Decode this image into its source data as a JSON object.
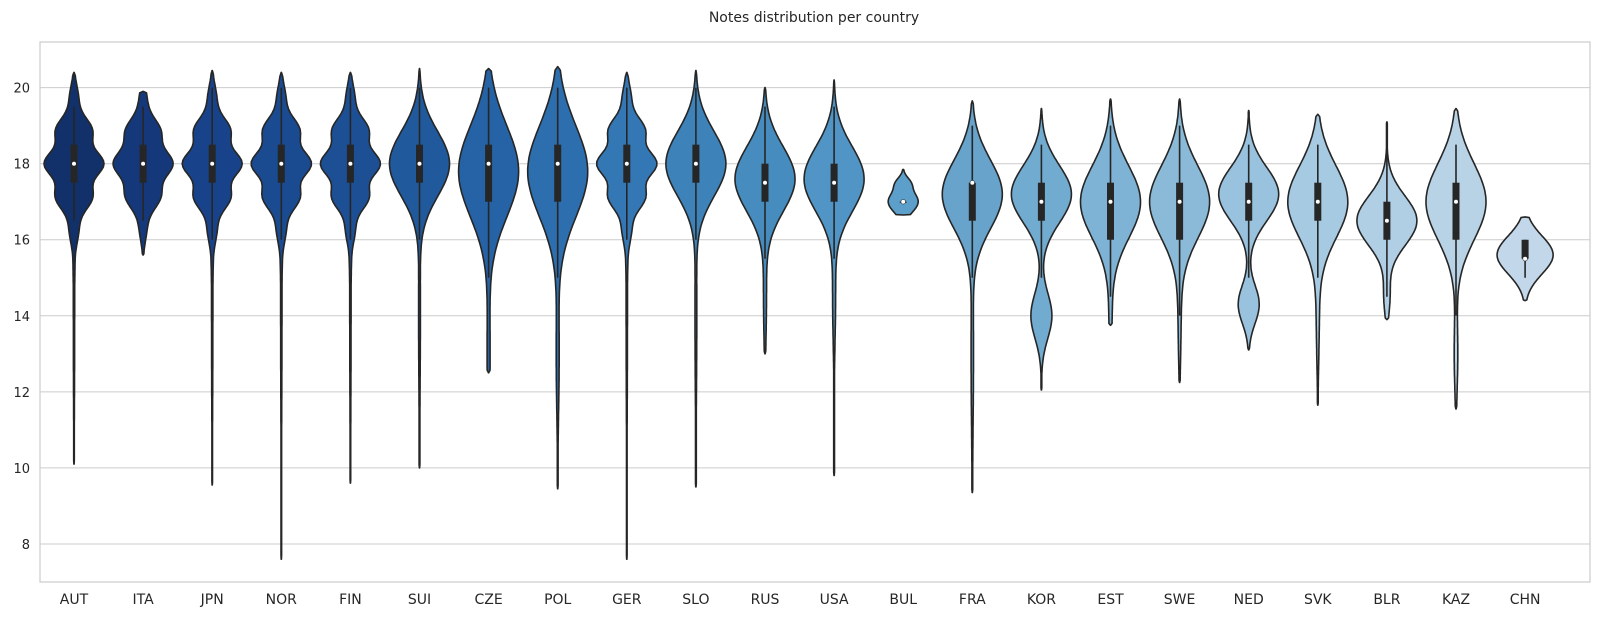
{
  "chart_data": {
    "type": "violin",
    "title": "Notes distribution per country",
    "xlabel": "",
    "ylabel": "",
    "ylim": [
      7,
      21.2
    ],
    "yticks": [
      8,
      10,
      12,
      14,
      16,
      18,
      20
    ],
    "grid": true,
    "categories": [
      "AUT",
      "ITA",
      "JPN",
      "NOR",
      "FIN",
      "SUI",
      "CZE",
      "POL",
      "GER",
      "SLO",
      "RUS",
      "USA",
      "BUL",
      "FRA",
      "KOR",
      "EST",
      "SWE",
      "NED",
      "SVK",
      "BLR",
      "KAZ",
      "CHN"
    ],
    "colors": [
      "#12306a",
      "#15387a",
      "#18438a",
      "#1a4a90",
      "#1d4f95",
      "#205a9c",
      "#2663a6",
      "#2c6eae",
      "#3477b5",
      "#3d82b8",
      "#468cbe",
      "#5095c5",
      "#5c9fca",
      "#67a3cb",
      "#72abd0",
      "#7fb3d5",
      "#8bbad8",
      "#99c2de",
      "#a6cae2",
      "#b0cfe4",
      "#b8d3e6",
      "#c2d8ea"
    ],
    "series": [
      {
        "name": "AUT",
        "min": 10.1,
        "max": 20.4,
        "q1": 17.5,
        "median": 18.0,
        "q3": 18.5,
        "whisker_low": 16.5,
        "whisker_high": 19.5
      },
      {
        "name": "ITA",
        "min": 15.6,
        "max": 19.9,
        "q1": 17.5,
        "median": 18.0,
        "q3": 18.5,
        "whisker_low": 16.5,
        "whisker_high": 19.5
      },
      {
        "name": "JPN",
        "min": 9.55,
        "max": 20.45,
        "q1": 17.5,
        "median": 18.0,
        "q3": 18.5,
        "whisker_low": 16.0,
        "whisker_high": 20.0
      },
      {
        "name": "NOR",
        "min": 7.6,
        "max": 20.4,
        "q1": 17.5,
        "median": 18.0,
        "q3": 18.5,
        "whisker_low": 16.0,
        "whisker_high": 20.0
      },
      {
        "name": "FIN",
        "min": 9.6,
        "max": 20.4,
        "q1": 17.5,
        "median": 18.0,
        "q3": 18.5,
        "whisker_low": 16.0,
        "whisker_high": 20.0
      },
      {
        "name": "SUI",
        "min": 10.0,
        "max": 20.5,
        "q1": 17.5,
        "median": 18.0,
        "q3": 18.5,
        "whisker_low": 16.0,
        "whisker_high": 20.0
      },
      {
        "name": "CZE",
        "min": 12.5,
        "max": 20.5,
        "q1": 17.0,
        "median": 18.0,
        "q3": 18.5,
        "whisker_low": 15.0,
        "whisker_high": 20.0
      },
      {
        "name": "POL",
        "min": 9.45,
        "max": 20.55,
        "q1": 17.0,
        "median": 18.0,
        "q3": 18.5,
        "whisker_low": 15.0,
        "whisker_high": 20.0
      },
      {
        "name": "GER",
        "min": 7.6,
        "max": 20.4,
        "q1": 17.5,
        "median": 18.0,
        "q3": 18.5,
        "whisker_low": 16.0,
        "whisker_high": 20.0
      },
      {
        "name": "SLO",
        "min": 9.5,
        "max": 20.45,
        "q1": 17.5,
        "median": 18.0,
        "q3": 18.5,
        "whisker_low": 16.0,
        "whisker_high": 20.0
      },
      {
        "name": "RUS",
        "min": 13.0,
        "max": 20.0,
        "q1": 17.0,
        "median": 17.5,
        "q3": 18.0,
        "whisker_low": 15.5,
        "whisker_high": 19.5
      },
      {
        "name": "USA",
        "min": 9.8,
        "max": 20.2,
        "q1": 17.0,
        "median": 17.5,
        "q3": 18.0,
        "whisker_low": 15.5,
        "whisker_high": 19.5
      },
      {
        "name": "BUL",
        "min": 16.65,
        "max": 17.85,
        "q1": 17.0,
        "median": 17.0,
        "q3": 17.0,
        "whisker_low": 17.0,
        "whisker_high": 17.0
      },
      {
        "name": "FRA",
        "min": 9.35,
        "max": 19.65,
        "q1": 16.5,
        "median": 17.5,
        "q3": 17.5,
        "whisker_low": 15.0,
        "whisker_high": 19.0
      },
      {
        "name": "KOR",
        "min": 12.05,
        "max": 19.45,
        "q1": 16.5,
        "median": 17.0,
        "q3": 17.5,
        "whisker_low": 15.0,
        "whisker_high": 18.5
      },
      {
        "name": "EST",
        "min": 13.75,
        "max": 19.7,
        "q1": 16.0,
        "median": 17.0,
        "q3": 17.5,
        "whisker_low": 14.5,
        "whisker_high": 19.0
      },
      {
        "name": "SWE",
        "min": 12.25,
        "max": 19.7,
        "q1": 16.0,
        "median": 17.0,
        "q3": 17.5,
        "whisker_low": 14.0,
        "whisker_high": 19.0
      },
      {
        "name": "NED",
        "min": 13.1,
        "max": 19.4,
        "q1": 16.5,
        "median": 17.0,
        "q3": 17.5,
        "whisker_low": 15.0,
        "whisker_high": 18.5
      },
      {
        "name": "SVK",
        "min": 11.65,
        "max": 19.3,
        "q1": 16.5,
        "median": 17.0,
        "q3": 17.5,
        "whisker_low": 15.0,
        "whisker_high": 18.5
      },
      {
        "name": "BLR",
        "min": 13.9,
        "max": 19.1,
        "q1": 16.0,
        "median": 16.5,
        "q3": 17.0,
        "whisker_low": 14.5,
        "whisker_high": 18.5
      },
      {
        "name": "KAZ",
        "min": 11.55,
        "max": 19.45,
        "q1": 16.0,
        "median": 17.0,
        "q3": 17.5,
        "whisker_low": 14.0,
        "whisker_high": 18.5
      },
      {
        "name": "CHN",
        "min": 14.4,
        "max": 16.6,
        "q1": 15.5,
        "median": 15.5,
        "q3": 16.0,
        "whisker_low": 15.0,
        "whisker_high": 16.0
      }
    ]
  }
}
